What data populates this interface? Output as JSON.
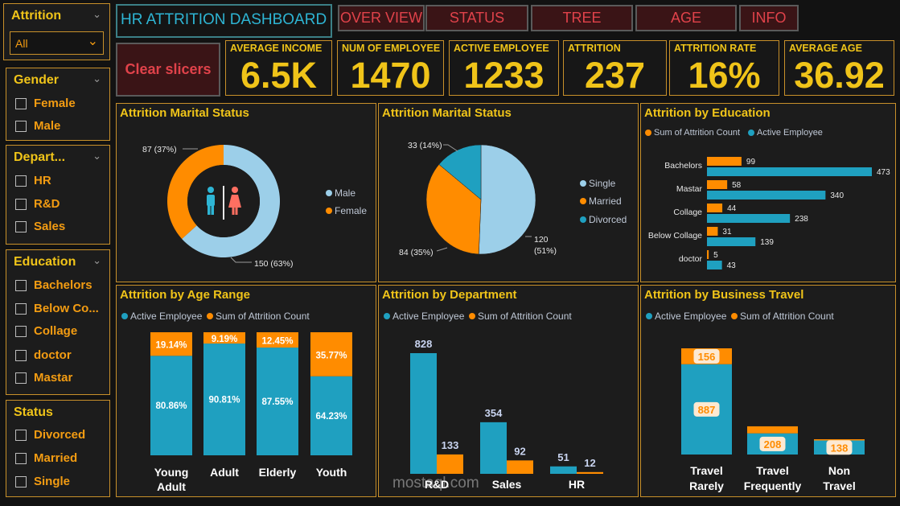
{
  "colors": {
    "orange": "#ff8c00",
    "teal": "#1fa0c0",
    "lightblue": "#9ccfe9",
    "gold": "#f0c419",
    "border": "#c8902a"
  },
  "slicers": {
    "attrition": {
      "title": "Attrition",
      "selected": "All"
    },
    "gender": {
      "title": "Gender",
      "items": [
        "Female",
        "Male"
      ]
    },
    "department": {
      "title": "Depart...",
      "items": [
        "HR",
        "R&D",
        "Sales"
      ]
    },
    "education": {
      "title": "Education",
      "items": [
        "Bachelors",
        "Below Co...",
        "Collage",
        "doctor",
        "Mastar"
      ]
    },
    "status": {
      "title": "Status",
      "items": [
        "Divorced",
        "Married",
        "Single"
      ]
    }
  },
  "header": {
    "title": "HR ATTRITION DASHBOARD",
    "clear_slicers": "Clear slicers"
  },
  "nav": [
    "OVER VIEW",
    "STATUS",
    "TREE",
    "AGE",
    "INFO"
  ],
  "kpis": [
    {
      "label": "AVERAGE INCOME",
      "value": "6.5K"
    },
    {
      "label": "NUM OF EMPLOYEE",
      "value": "1470"
    },
    {
      "label": "ACTIVE EMPLOYEE",
      "value": "1233"
    },
    {
      "label": "ATTRITION",
      "value": "237"
    },
    {
      "label": "ATTRITION RATE",
      "value": "16%"
    },
    {
      "label": "AVERAGE AGE",
      "value": "36.92"
    }
  ],
  "chart_data": [
    {
      "type": "pie",
      "variant": "donut",
      "title": "Attrition Marital Status",
      "slices": [
        {
          "name": "Male",
          "value": 150,
          "label": "150 (63%)",
          "color": "#9ccfe9"
        },
        {
          "name": "Female",
          "value": 87,
          "label": "87 (37%)",
          "color": "#ff8c00"
        }
      ]
    },
    {
      "type": "pie",
      "title": "Attrition Marital Status",
      "slices": [
        {
          "name": "Single",
          "value": 120,
          "label": "120\n(51%)",
          "color": "#9ccfe9"
        },
        {
          "name": "Married",
          "value": 84,
          "label": "84 (35%)",
          "color": "#ff8c00"
        },
        {
          "name": "Divorced",
          "value": 33,
          "label": "33 (14%)",
          "color": "#1fa0c0"
        }
      ]
    },
    {
      "type": "bar",
      "orientation": "horizontal",
      "title": "Attrition by Education",
      "categories": [
        "Bachelors",
        "Mastar",
        "Collage",
        "Below Collage",
        "doctor"
      ],
      "series": [
        {
          "name": "Sum of Attrition Count",
          "values": [
            99,
            58,
            44,
            31,
            5
          ],
          "color": "#ff8c00"
        },
        {
          "name": "Active Employee",
          "values": [
            473,
            340,
            238,
            139,
            43
          ],
          "color": "#1fa0c0"
        }
      ]
    },
    {
      "type": "bar",
      "stacked": "100%",
      "title": "Attrition by Age Range",
      "categories": [
        "Young Adult",
        "Adult",
        "Elderly",
        "Youth"
      ],
      "series": [
        {
          "name": "Active Employee",
          "values": [
            80.86,
            90.81,
            87.55,
            64.23
          ],
          "labels": [
            "80.86%",
            "90.81%",
            "87.55%",
            "64.23%"
          ],
          "color": "#1fa0c0"
        },
        {
          "name": "Sum of Attrition Count",
          "values": [
            19.14,
            9.19,
            12.45,
            35.77
          ],
          "labels": [
            "19.14%",
            "9.19%",
            "12.45%",
            "35.77%"
          ],
          "color": "#ff8c00"
        }
      ]
    },
    {
      "type": "bar",
      "title": "Attrition by Department",
      "categories": [
        "R&D",
        "Sales",
        "HR"
      ],
      "series": [
        {
          "name": "Active Employee",
          "values": [
            828,
            354,
            51
          ],
          "color": "#1fa0c0"
        },
        {
          "name": "Sum of Attrition Count",
          "values": [
            133,
            92,
            12
          ],
          "color": "#ff8c00"
        }
      ]
    },
    {
      "type": "bar",
      "stacked": true,
      "title": "Attrition by Business Travel",
      "categories": [
        "Travel Rarely",
        "Travel Frequently",
        "Non Travel"
      ],
      "series": [
        {
          "name": "Active Employee",
          "values": [
            887,
            208,
            138
          ],
          "color": "#1fa0c0"
        },
        {
          "name": "Sum of Attrition Count",
          "values": [
            156,
            69,
            12
          ],
          "color": "#ff8c00"
        }
      ]
    }
  ],
  "watermark": {
    "text": "mostaql.com"
  }
}
